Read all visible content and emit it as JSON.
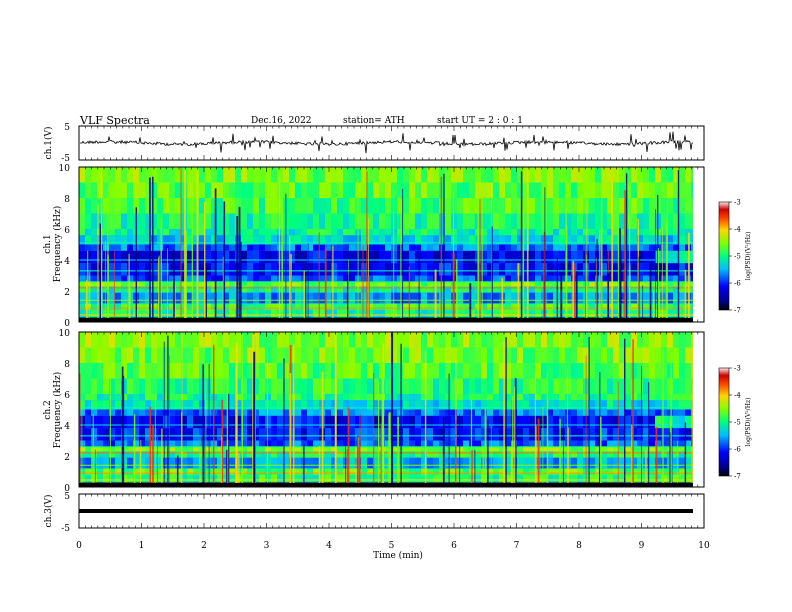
{
  "header": {
    "title": "VLF  Spectra",
    "date": "Dec.16, 2022",
    "station": "station= ATH",
    "start": "start  UT  =    2  : 0  : 1"
  },
  "chart_data": [
    {
      "type": "line",
      "ylabel": "ch.1(V)",
      "ylim": [
        -5,
        5
      ],
      "yticks": [
        "5",
        "-5"
      ],
      "xlim": [
        0,
        10
      ],
      "values_description": "continuous waveform around -0.5 V with sferic spikes"
    },
    {
      "type": "heatmap",
      "ylabel": "ch.1\nFrequency (kHz)",
      "ylim": [
        0,
        10
      ],
      "yticks": [
        "0",
        "2",
        "4",
        "6",
        "8",
        "10"
      ],
      "xlim": [
        0,
        10
      ],
      "colorbar": {
        "label": "log(PSD)(V²/Hz)",
        "range": [
          -7,
          -3
        ],
        "ticks": [
          "-3",
          "-4",
          "-5",
          "-6",
          "-7"
        ]
      }
    },
    {
      "type": "heatmap",
      "ylabel": "ch.2\nFrequency (kHz)",
      "ylim": [
        0,
        10
      ],
      "yticks": [
        "0",
        "2",
        "4",
        "6",
        "8",
        "10"
      ],
      "xlim": [
        0,
        10
      ],
      "colorbar": {
        "label": "log(PSD)(V²/Hz)",
        "range": [
          -7,
          -3
        ],
        "ticks": [
          "-3",
          "-4",
          "-5",
          "-6",
          "-7"
        ]
      }
    },
    {
      "type": "line",
      "ylabel": "ch.3(V)",
      "ylim": [
        -5,
        5
      ],
      "yticks": [
        "5",
        "-5"
      ],
      "xlim": [
        0,
        10
      ],
      "xlabel": "Time  (min)",
      "xticks": [
        "0",
        "1",
        "2",
        "3",
        "4",
        "5",
        "6",
        "7",
        "8",
        "9",
        "10"
      ]
    }
  ]
}
